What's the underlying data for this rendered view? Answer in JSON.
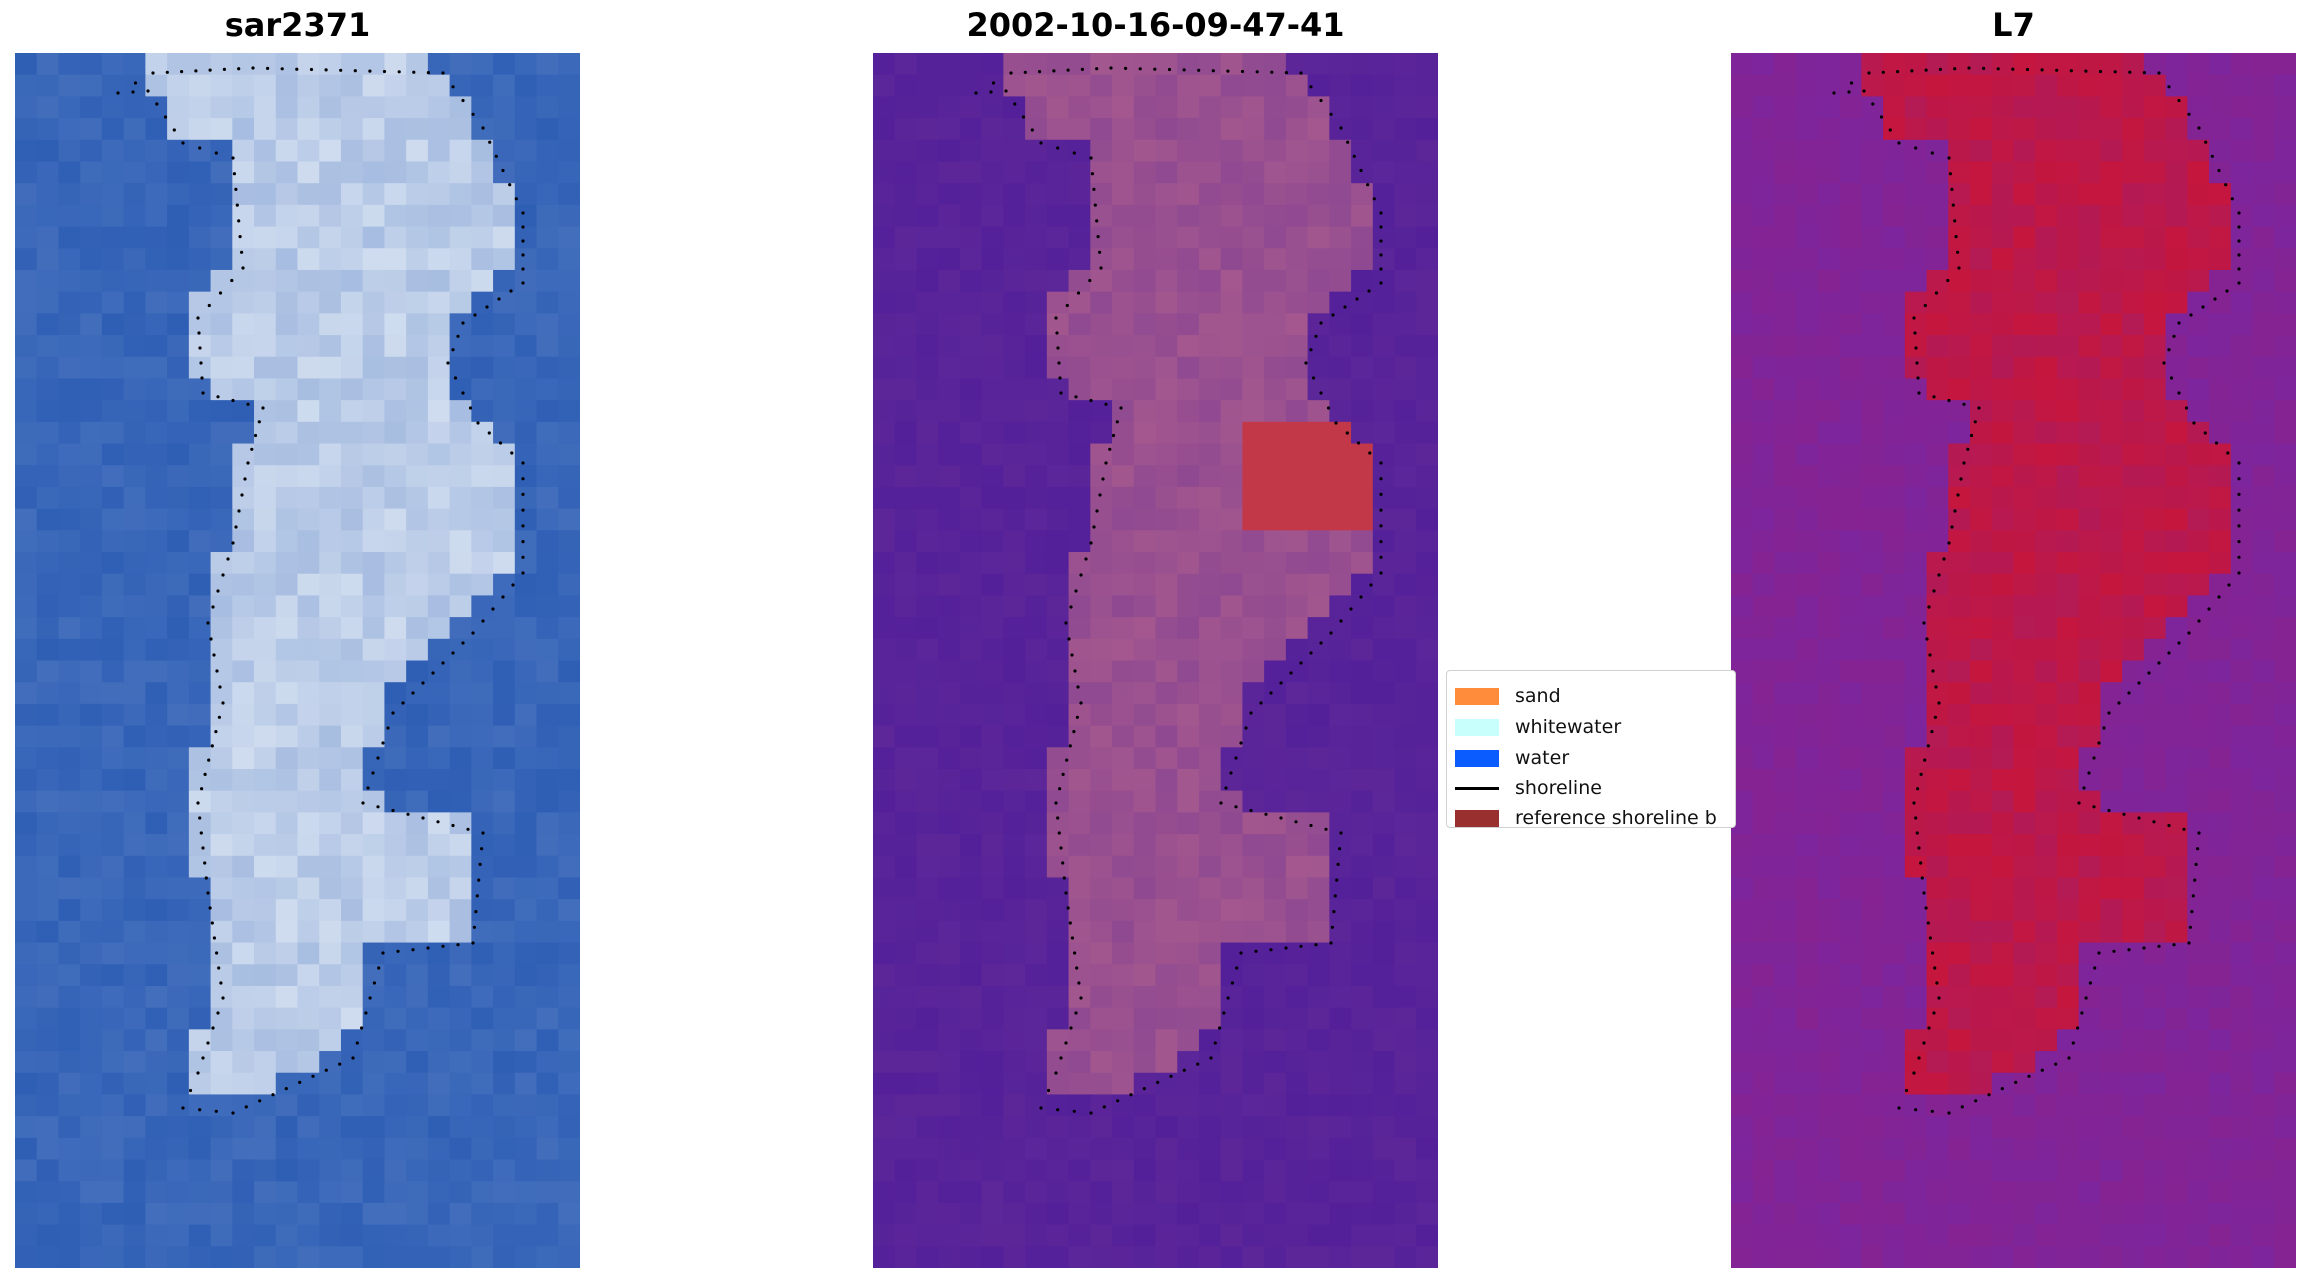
{
  "panels": [
    {
      "title": "sar2371"
    },
    {
      "title": "2002-10-16-09-47-41"
    },
    {
      "title": "L7"
    }
  ],
  "legend": {
    "items": [
      {
        "label": "sand",
        "color": "#ff8c3a"
      },
      {
        "label": "whitewater",
        "color": "#c8fffc"
      },
      {
        "label": "water",
        "color": "#0a5cff"
      },
      {
        "label": "shoreline",
        "color": "#000000"
      },
      {
        "label": "reference shoreline b",
        "color": "#9a2f30"
      }
    ]
  },
  "colors": {
    "rgb_water": "#2f5fb5",
    "rgb_land": "#cfdcef",
    "class_water": "#53209a",
    "class_land": "#a3578e",
    "class_reference": "#c23848",
    "ndwi_water": "#7d259d",
    "ndwi_land": "#c5163d"
  }
}
